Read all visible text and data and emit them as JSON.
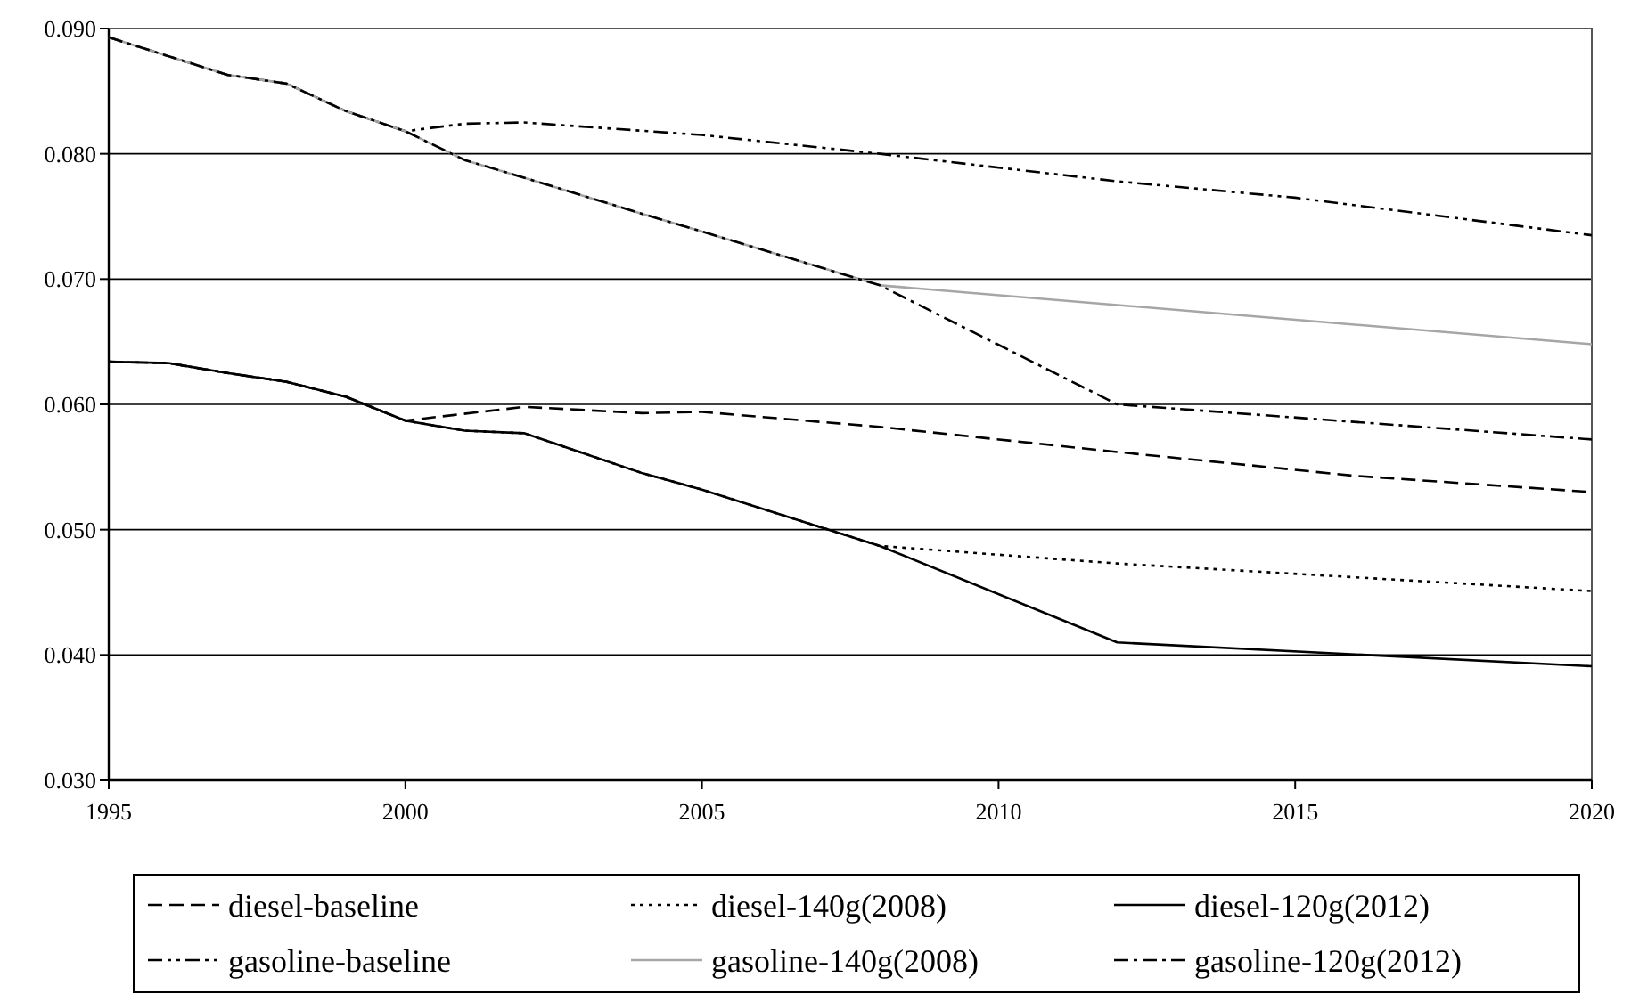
{
  "chart_data": {
    "type": "line",
    "xlim": [
      1995,
      2020
    ],
    "xticks": [
      1995,
      2000,
      2005,
      2010,
      2015,
      2020
    ],
    "ylim": [
      0.03,
      0.09
    ],
    "yticks": [
      {
        "value": 0.03,
        "label": "0.030"
      },
      {
        "value": 0.04,
        "label": "0.040"
      },
      {
        "value": 0.05,
        "label": "0.050"
      },
      {
        "value": 0.06,
        "label": "0.060"
      },
      {
        "value": 0.07,
        "label": "0.070"
      },
      {
        "value": 0.08,
        "label": "0.080"
      },
      {
        "value": 0.09,
        "label": "0.090"
      }
    ],
    "grid": "y",
    "legend": "bottom",
    "marker": "none",
    "series": [
      {
        "name": "diesel-baseline",
        "color": "#000000",
        "line_style": "dashed",
        "x": [
          1995,
          1996,
          1997,
          1998,
          1999,
          2000,
          2002,
          2004,
          2005,
          2008,
          2012,
          2016,
          2020
        ],
        "values": [
          0.0634,
          0.0633,
          0.0625,
          0.0618,
          0.0606,
          0.0587,
          0.0598,
          0.0593,
          0.0594,
          0.0582,
          0.0562,
          0.0543,
          0.053
        ]
      },
      {
        "name": "diesel-140g(2008)",
        "color": "#000000",
        "line_style": "dotted",
        "x": [
          1995,
          1996,
          1997,
          1998,
          1999,
          2000,
          2001,
          2002,
          2004,
          2005,
          2008,
          2012,
          2020
        ],
        "values": [
          0.0634,
          0.0633,
          0.0625,
          0.0618,
          0.0606,
          0.0587,
          0.0579,
          0.0577,
          0.0545,
          0.0532,
          0.0487,
          0.0473,
          0.0451
        ]
      },
      {
        "name": "diesel-120g(2012)",
        "color": "#000000",
        "line_style": "solid",
        "x": [
          1995,
          1996,
          1997,
          1998,
          1999,
          2000,
          2001,
          2002,
          2004,
          2005,
          2008,
          2012,
          2020
        ],
        "values": [
          0.0634,
          0.0633,
          0.0625,
          0.0618,
          0.0606,
          0.0587,
          0.0579,
          0.0577,
          0.0545,
          0.0532,
          0.0487,
          0.041,
          0.0391
        ]
      },
      {
        "name": "gasoline-baseline",
        "color": "#000000",
        "line_style": "dashdotdot",
        "x": [
          1995,
          1996,
          1997,
          1998,
          1999,
          2000,
          2001,
          2002,
          2005,
          2008,
          2012,
          2015,
          2020
        ],
        "values": [
          0.0893,
          0.0878,
          0.0863,
          0.0856,
          0.0834,
          0.0818,
          0.0824,
          0.0825,
          0.0815,
          0.08,
          0.0778,
          0.0765,
          0.0735
        ]
      },
      {
        "name": "gasoline-140g(2008)",
        "color": "#a6a6a6",
        "line_style": "solid",
        "x": [
          1995,
          1996,
          1997,
          1998,
          1999,
          2000,
          2001,
          2002,
          2004,
          2005,
          2008,
          2020
        ],
        "values": [
          0.0893,
          0.0878,
          0.0863,
          0.0856,
          0.0834,
          0.0818,
          0.0795,
          0.0781,
          0.0752,
          0.0738,
          0.0695,
          0.0648
        ]
      },
      {
        "name": "gasoline-120g(2012)",
        "color": "#000000",
        "line_style": "dashdot",
        "x": [
          1995,
          1996,
          1997,
          1998,
          1999,
          2000,
          2001,
          2002,
          2004,
          2005,
          2008,
          2012,
          2020
        ],
        "values": [
          0.0893,
          0.0878,
          0.0863,
          0.0856,
          0.0834,
          0.0818,
          0.0795,
          0.0781,
          0.0752,
          0.0738,
          0.0695,
          0.06,
          0.0572
        ]
      }
    ]
  }
}
